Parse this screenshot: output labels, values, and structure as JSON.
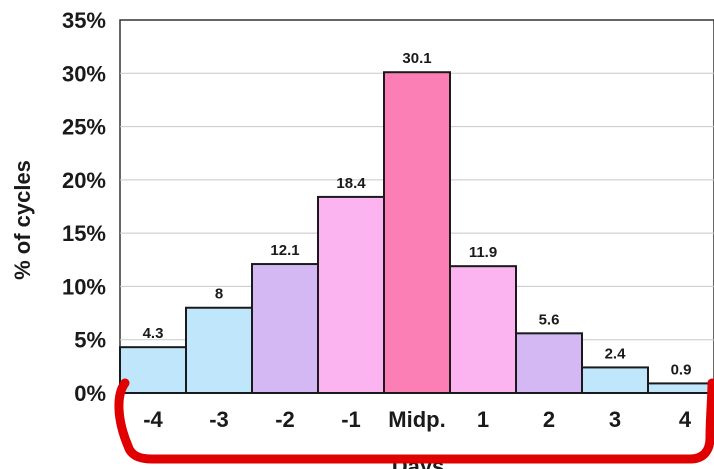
{
  "chart_data": {
    "type": "bar",
    "categories": [
      "-4",
      "-3",
      "-2",
      "-1",
      "Midp.",
      "1",
      "2",
      "3",
      "4"
    ],
    "values": [
      4.3,
      8,
      12.1,
      18.4,
      30.1,
      11.9,
      5.6,
      2.4,
      0.9
    ],
    "data_labels": [
      "4.3",
      "8",
      "12.1",
      "18.4",
      "30.1",
      "11.9",
      "5.6",
      "2.4",
      "0.9"
    ],
    "bar_colors": [
      "#bfe6fb",
      "#bfe6fb",
      "#d4b8f4",
      "#fbb4f0",
      "#fb7eb4",
      "#fbb4f0",
      "#d4b8f4",
      "#bfe6fb",
      "#bfe6fb"
    ],
    "ylabel": "% of cycles",
    "xlabel": "Days",
    "ylim": [
      0,
      35
    ],
    "yticks": [
      "0%",
      "5%",
      "10%",
      "15%",
      "20%",
      "25%",
      "30%",
      "35%"
    ],
    "grid": true,
    "bracket_color": "#e00000"
  }
}
